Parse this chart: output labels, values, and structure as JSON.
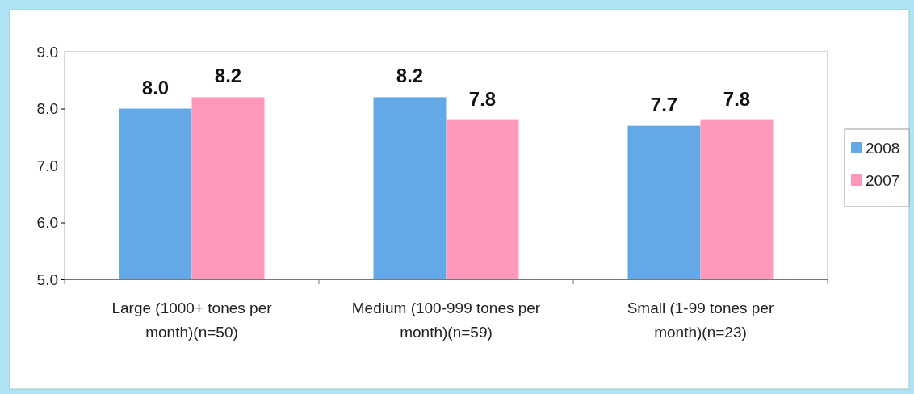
{
  "chart_data": {
    "type": "bar",
    "categories": [
      "Large (1000+ tones per month)(n=50)",
      "Medium (100-999 tones per month)(n=59)",
      "Small (1-99 tones per month)(n=23)"
    ],
    "series": [
      {
        "name": "2008",
        "color": "#63a9e8",
        "values": [
          8.0,
          8.2,
          7.7
        ],
        "value_labels": [
          "8.0",
          "8.2",
          "7.7"
        ]
      },
      {
        "name": "2007",
        "color": "#ff99bb",
        "values": [
          8.2,
          7.8,
          7.8
        ],
        "value_labels": [
          "8.2",
          "7.8",
          "7.8"
        ]
      }
    ],
    "ylim": [
      5,
      9
    ],
    "yticks": [
      {
        "value": 5,
        "label": "5.0"
      },
      {
        "value": 6,
        "label": "6.0"
      },
      {
        "value": 7,
        "label": "7.0"
      },
      {
        "value": 8,
        "label": "8.0"
      },
      {
        "value": 9,
        "label": "9.0"
      }
    ],
    "legend": "right",
    "grid": false
  }
}
